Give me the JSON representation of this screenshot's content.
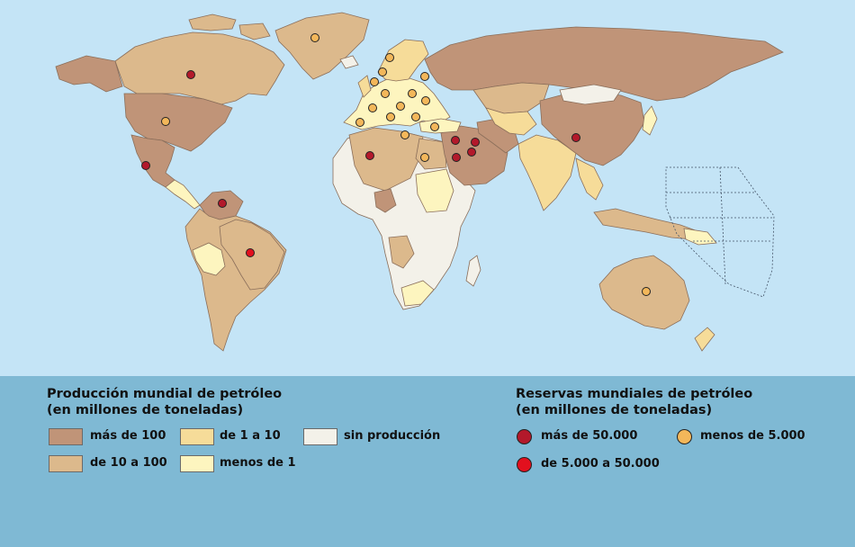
{
  "production": {
    "title_line1": "Producción mundial de petróleo",
    "title_line2": "(en millones de toneladas)",
    "items": [
      {
        "label": "más de 100",
        "color": "#c09478"
      },
      {
        "label": "de 10 a 100",
        "color": "#dcb98c"
      },
      {
        "label": "de 1 a 10",
        "color": "#f6dc99"
      },
      {
        "label": "menos de 1",
        "color": "#fdf5bf"
      },
      {
        "label": "sin producción",
        "color": "#f3f1e9"
      }
    ]
  },
  "reserves": {
    "title_line1": "Reservas mundiales de petróleo",
    "title_line2": "(en millones de toneladas)",
    "items": [
      {
        "label": "más de 50.000",
        "color": "#b3192b"
      },
      {
        "label": "de 5.000 a 50.000",
        "color": "#e2101e"
      },
      {
        "label": "menos de 5.000",
        "color": "#f3b75a"
      }
    ]
  },
  "colors": {
    "ocean": "#c4e4f6",
    "legend_panel": "#7fb9d4",
    "border": "#8a6e5a"
  }
}
